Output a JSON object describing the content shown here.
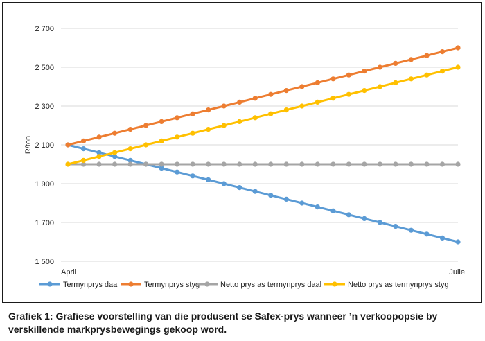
{
  "chart_data": {
    "type": "line",
    "ylabel": "R/ton",
    "xlabel": "",
    "x_tick_labels": [
      "April",
      "Julie"
    ],
    "points_per_series": 26,
    "ylim": [
      1500,
      2700
    ],
    "yticks": [
      1500,
      1700,
      1900,
      2100,
      2300,
      2500,
      2700
    ],
    "ytick_labels": [
      "1 500",
      "1 700",
      "1 900",
      "2 100",
      "2 300",
      "2 500",
      "2 700"
    ],
    "grid": true,
    "legend_position": "bottom",
    "series": [
      {
        "name": "Termynprys daal",
        "color": "#5b9bd5",
        "start": 2100,
        "end": 1600
      },
      {
        "name": "Termynprys styg",
        "color": "#ed7d31",
        "start": 2100,
        "end": 2600
      },
      {
        "name": "Netto prys as termynprys daal",
        "color": "#a5a5a5",
        "start": 2000,
        "end": 2000
      },
      {
        "name": "Netto prys as termynprys styg",
        "color": "#ffc000",
        "start": 2000,
        "end": 2500
      }
    ]
  },
  "caption": "Grafiek 1: Grafiese voorstelling van die produsent se Safex-prys wanneer ’n verkoopopsie by verskillende markprysbewegings gekoop word."
}
